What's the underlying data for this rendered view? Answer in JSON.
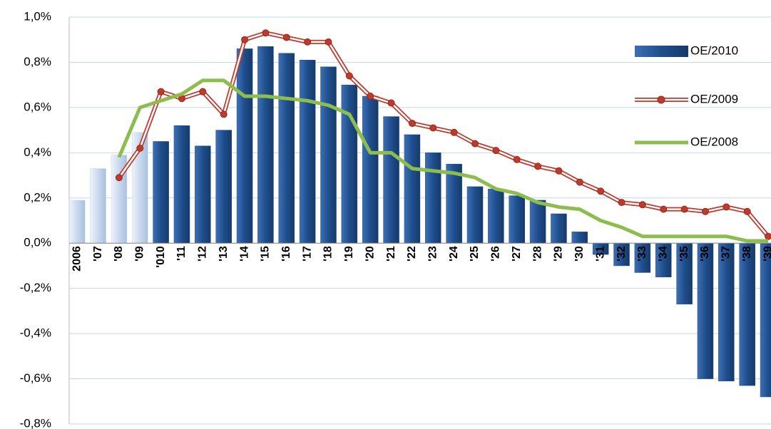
{
  "chart_data": {
    "type": "bar",
    "categories": [
      "2006",
      "'07",
      "'08",
      "'09",
      "'010",
      "'11",
      "'12",
      "'13",
      "'14",
      "'15",
      "'16",
      "'17",
      "'18",
      "'19",
      "'20",
      "'21",
      "'22",
      "'23",
      "'24",
      "'25",
      "'26",
      "'27",
      "'28",
      "'29",
      "'30",
      "'31",
      "'32",
      "'33",
      "'34",
      "'35",
      "'36",
      "'37",
      "'38",
      "'39"
    ],
    "series": [
      {
        "name": "OE/2010",
        "type": "bar",
        "color": "#1f4e8c",
        "colors": [
          "#c9d8ee",
          "#c9d8ee",
          "#c9d8ee",
          "#c9d8ee",
          "#1f4e8c",
          "#1f4e8c",
          "#1f4e8c",
          "#1f4e8c",
          "#1f4e8c",
          "#1f4e8c",
          "#1f4e8c",
          "#1f4e8c",
          "#1f4e8c",
          "#1f4e8c",
          "#1f4e8c",
          "#1f4e8c",
          "#1f4e8c",
          "#1f4e8c",
          "#1f4e8c",
          "#1f4e8c",
          "#1f4e8c",
          "#1f4e8c",
          "#1f4e8c",
          "#1f4e8c",
          "#1f4e8c",
          "#1f4e8c",
          "#1f4e8c",
          "#1f4e8c",
          "#1f4e8c",
          "#1f4e8c",
          "#1f4e8c",
          "#1f4e8c",
          "#1f4e8c",
          "#1f4e8c"
        ],
        "values": [
          0.19,
          0.33,
          0.39,
          0.49,
          0.45,
          0.52,
          0.43,
          0.5,
          0.86,
          0.87,
          0.84,
          0.81,
          0.78,
          0.7,
          0.65,
          0.56,
          0.48,
          0.4,
          0.35,
          0.25,
          0.24,
          0.21,
          0.19,
          0.13,
          0.05,
          -0.05,
          -0.1,
          -0.13,
          -0.15,
          -0.27,
          -0.6,
          -0.61,
          -0.63,
          -0.68
        ]
      },
      {
        "name": "OE/2009",
        "type": "line",
        "color": "#c0392b",
        "markers": true,
        "values": [
          null,
          null,
          0.29,
          0.42,
          0.67,
          0.64,
          0.67,
          0.57,
          0.9,
          0.93,
          0.91,
          0.89,
          0.89,
          0.74,
          0.65,
          0.62,
          0.53,
          0.51,
          0.49,
          0.44,
          0.41,
          0.37,
          0.34,
          0.32,
          0.27,
          0.23,
          0.18,
          0.17,
          0.15,
          0.15,
          0.14,
          0.16,
          0.14,
          0.03
        ]
      },
      {
        "name": "OE/2008",
        "type": "line",
        "color": "#8cbd4e",
        "markers": false,
        "values": [
          null,
          null,
          0.38,
          0.6,
          0.63,
          0.66,
          0.72,
          0.72,
          0.65,
          0.65,
          0.64,
          0.63,
          0.61,
          0.57,
          0.4,
          0.4,
          0.33,
          0.32,
          0.31,
          0.29,
          0.24,
          0.22,
          0.18,
          0.16,
          0.15,
          0.1,
          0.07,
          0.03,
          0.03,
          0.03,
          0.03,
          0.03,
          0.01,
          0.01
        ]
      }
    ],
    "ylim": [
      -0.8,
      1.0
    ],
    "yticks": [
      {
        "value": -0.8,
        "label": "-0,8%"
      },
      {
        "value": -0.6,
        "label": "-0,6%"
      },
      {
        "value": -0.4,
        "label": "-0,4%"
      },
      {
        "value": -0.2,
        "label": "-0,2%"
      },
      {
        "value": 0,
        "label": "0,0%"
      },
      {
        "value": 0.2,
        "label": "0,2%"
      },
      {
        "value": 0.4,
        "label": "0,4%"
      },
      {
        "value": 0.6,
        "label": "0,6%"
      },
      {
        "value": 0.8,
        "label": "0,8%"
      },
      {
        "value": 1.0,
        "label": "1,0%"
      }
    ],
    "grid": true,
    "legend": "upper right"
  }
}
